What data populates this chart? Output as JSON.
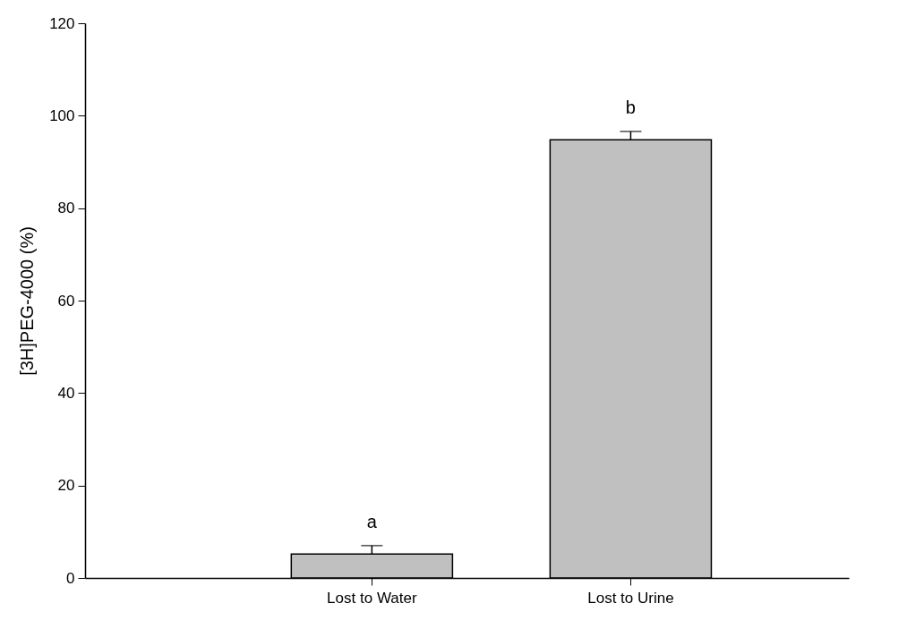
{
  "chart_data": {
    "type": "bar",
    "ylabel": "[3H]PEG-4000 (%)",
    "categories": [
      "Lost to Water",
      "Lost to Urine"
    ],
    "values": [
      5.2,
      94.8
    ],
    "errors": [
      [
        5.2,
        7.0
      ],
      [
        94.8,
        96.6
      ]
    ],
    "color": "#c0c0c0",
    "ylim": [
      0,
      120
    ],
    "yticks": [
      0,
      20,
      40,
      60,
      80,
      100,
      120
    ],
    "annotations": [
      "a",
      "b"
    ]
  }
}
